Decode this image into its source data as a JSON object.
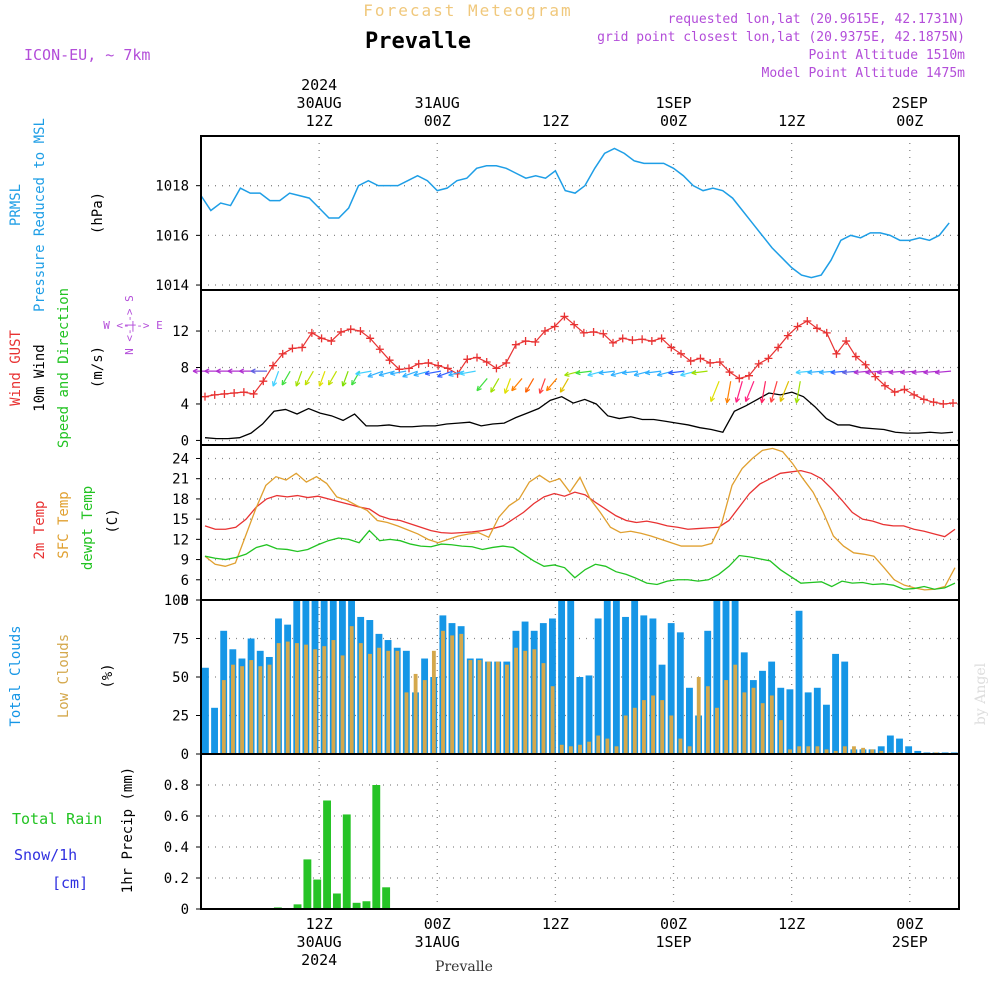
{
  "header": {
    "title": "Forecast Meteogram",
    "location": "Prevalle",
    "model": "ICON-EU, ~ 7km",
    "requested": "requested lon,lat (20.9615E, 42.1731N)",
    "grid": "grid point closest lon,lat (20.9375E, 42.1875N)",
    "altitude": "Point Altitude 1510m",
    "model_altitude": "Model Point Altitude 1475m",
    "footer_location": "Prevalle",
    "watermark": "by Angel"
  },
  "time_axis": {
    "top_labels": [
      {
        "lines": [
          "2024",
          "30AUG",
          "12Z"
        ],
        "x_hour": 12
      },
      {
        "lines": [
          "31AUG",
          "00Z"
        ],
        "x_hour": 24
      },
      {
        "lines": [
          "12Z"
        ],
        "x_hour": 36
      },
      {
        "lines": [
          "1SEP",
          "00Z"
        ],
        "x_hour": 48
      },
      {
        "lines": [
          "12Z"
        ],
        "x_hour": 60
      },
      {
        "lines": [
          "2SEP",
          "00Z"
        ],
        "x_hour": 72
      }
    ],
    "bottom_labels": [
      {
        "lines": [
          "12Z",
          "30AUG",
          "2024"
        ],
        "x_hour": 12
      },
      {
        "lines": [
          "00Z",
          "31AUG"
        ],
        "x_hour": 24
      },
      {
        "lines": [
          "12Z"
        ],
        "x_hour": 36
      },
      {
        "lines": [
          "00Z",
          "1SEP"
        ],
        "x_hour": 48
      },
      {
        "lines": [
          "12Z"
        ],
        "x_hour": 60
      },
      {
        "lines": [
          "00Z",
          "2SEP"
        ],
        "x_hour": 72
      }
    ],
    "hour_range": [
      0,
      77
    ]
  },
  "panel_labels": {
    "pressure": [
      "PRMSL",
      "Pressure Reduced to MSL"
    ],
    "pressure_unit": "(hPa)",
    "wind": [
      "Wind GUST",
      "10m Wind",
      "Speed and Direction"
    ],
    "wind_unit": "(m/s)",
    "compass": [
      "N",
      "S",
      "E",
      "W"
    ],
    "temp": [
      "2m Temp",
      "SFC Temp",
      "dewpt Temp"
    ],
    "temp_unit": "(C)",
    "clouds": [
      "Total Clouds",
      "Low Clouds"
    ],
    "clouds_unit": "(%)",
    "precip": [
      "Total  Rain",
      "Snow/1h",
      "[cm]"
    ],
    "precip_unit": "1hr Precip (mm)"
  },
  "colors": {
    "pressure": "#1e9ee6",
    "gust": "#e83232",
    "wind": "#000000",
    "t2m": "#e83232",
    "sfc": "#e0a030",
    "dewpt": "#22c322",
    "total_cloud": "#1596e6",
    "low_cloud": "#d4a84c",
    "rain": "#26c326",
    "snow": "#3030e0",
    "header": "#b34dd9",
    "title_top": "#f0c87c"
  },
  "chart_data": [
    {
      "type": "line",
      "name": "PRMSL",
      "ylabel": "(hPa)",
      "ylim": [
        1013.8,
        1020.0
      ],
      "yticks": [
        1014,
        1016,
        1018
      ],
      "x_hours": [
        0,
        1,
        2,
        3,
        4,
        5,
        6,
        7,
        8,
        9,
        10,
        11,
        12,
        13,
        14,
        15,
        16,
        17,
        18,
        19,
        20,
        21,
        22,
        23,
        24,
        25,
        26,
        27,
        28,
        29,
        30,
        31,
        32,
        33,
        34,
        35,
        36,
        37,
        38,
        39,
        40,
        41,
        42,
        43,
        44,
        45,
        46,
        47,
        48,
        49,
        50,
        51,
        52,
        53,
        54,
        55,
        56,
        57,
        58,
        59,
        60,
        61,
        62,
        63,
        64,
        65,
        66,
        67,
        68,
        69,
        70,
        71,
        72,
        73,
        74,
        75,
        76
      ],
      "values": [
        1017.6,
        1017.0,
        1017.3,
        1017.2,
        1017.9,
        1017.7,
        1017.7,
        1017.4,
        1017.4,
        1017.7,
        1017.6,
        1017.5,
        1017.1,
        1016.7,
        1016.7,
        1017.1,
        1018.0,
        1018.2,
        1018.0,
        1018.0,
        1018.0,
        1018.2,
        1018.4,
        1018.2,
        1017.8,
        1017.9,
        1018.2,
        1018.3,
        1018.7,
        1018.8,
        1018.8,
        1018.7,
        1018.5,
        1018.3,
        1018.4,
        1018.3,
        1018.6,
        1017.8,
        1017.7,
        1018.0,
        1018.7,
        1019.3,
        1019.5,
        1019.3,
        1019.0,
        1018.9,
        1018.9,
        1018.9,
        1018.7,
        1018.4,
        1018.0,
        1017.8,
        1017.9,
        1017.8,
        1017.5,
        1017.0,
        1016.5,
        1016.0,
        1015.5,
        1015.1,
        1014.7,
        1014.4,
        1014.3,
        1014.4,
        1015.0,
        1015.8,
        1016.0,
        1015.9,
        1016.1,
        1016.1,
        1016.0,
        1015.8,
        1015.8,
        1015.9,
        1015.8,
        1016.0,
        1016.5
      ]
    },
    {
      "type": "line",
      "name": "Wind",
      "ylabel": "(m/s)",
      "ylim": [
        -0.5,
        16.5
      ],
      "yticks": [
        0,
        4,
        8,
        12
      ],
      "series": [
        {
          "name": "Wind GUST",
          "values": [
            4.8,
            5.0,
            5.1,
            5.2,
            5.3,
            5.1,
            6.5,
            8.2,
            9.5,
            10.1,
            10.2,
            11.8,
            11.2,
            10.9,
            11.9,
            12.2,
            12.0,
            11.2,
            10.0,
            8.8,
            7.8,
            7.9,
            8.4,
            8.5,
            8.2,
            7.9,
            7.3,
            8.9,
            9.1,
            8.6,
            7.9,
            8.5,
            10.5,
            10.9,
            10.8,
            12.0,
            12.5,
            13.6,
            12.7,
            11.8,
            11.9,
            11.7,
            10.7,
            11.2,
            11.0,
            11.1,
            10.9,
            11.2,
            10.2,
            9.5,
            8.7,
            9.0,
            8.5,
            8.6,
            7.5,
            6.8,
            7.1,
            8.4,
            9.0,
            10.2,
            11.5,
            12.5,
            13.1,
            12.3,
            11.8,
            9.5,
            10.9,
            9.2,
            8.3,
            7.0,
            6.0,
            5.3,
            5.6,
            5.0,
            4.5,
            4.2,
            4.0,
            4.1
          ]
        },
        {
          "name": "10m Wind",
          "values": [
            0.3,
            0.2,
            0.2,
            0.3,
            0.8,
            1.8,
            3.2,
            3.4,
            2.9,
            3.5,
            3.0,
            2.7,
            2.2,
            2.9,
            1.6,
            1.6,
            1.7,
            1.5,
            1.5,
            1.6,
            1.6,
            1.8,
            1.9,
            2.0,
            1.6,
            1.8,
            1.9,
            2.5,
            3.0,
            3.5,
            4.4,
            4.8,
            4.1,
            4.5,
            4.0,
            2.7,
            2.4,
            2.6,
            2.3,
            2.3,
            2.1,
            1.9,
            1.7,
            1.4,
            1.2,
            0.9,
            3.2,
            3.8,
            4.5,
            5.2,
            5.0,
            5.3,
            4.8,
            3.7,
            2.4,
            1.7,
            1.7,
            1.4,
            1.3,
            1.2,
            0.9,
            0.8,
            0.8,
            0.9,
            0.8,
            0.9
          ]
        }
      ],
      "x_hours_gust": "0..77 by 1",
      "x_hours_wind": "0..76 step 1.17",
      "barb_colors": [
        "#b030d0",
        "#b030d0",
        "#b030d0",
        "#b030d0",
        "#b030d0",
        "#6060e0",
        "#40d0ff",
        "#40e040",
        "#a0e000",
        "#c0e000",
        "#e0e000",
        "#c0e000",
        "#80e000",
        "#40e040",
        "#40d0ff",
        "#30b0ff",
        "#30b0ff",
        "#30b0ff",
        "#30b0ff",
        "#30b0ff",
        "#3060ff",
        "#3060ff",
        "#30b0ff",
        "#40d0ff",
        "#40e040",
        "#a0e000",
        "#e0e000",
        "#ff8000",
        "#ff6000",
        "#ff4040",
        "#ff8000",
        "#e0c000",
        "#a0e000",
        "#40e040",
        "#40d0ff",
        "#30b0ff",
        "#30b0ff",
        "#30b0ff",
        "#30b0ff",
        "#30b0ff",
        "#30b0ff",
        "#3060ff",
        "#40d0ff",
        "#a0e000",
        "#e0e000",
        "#ff8000",
        "#ff2080",
        "#ff2080",
        "#ff2060",
        "#ff4040",
        "#e0c000",
        "#a0e000",
        "#40d0ff",
        "#30b0ff",
        "#30b0ff",
        "#3060ff",
        "#6060e0",
        "#b030d0",
        "#b030d0",
        "#b030d0",
        "#b030d0",
        "#b030d0",
        "#b030d0",
        "#b030d0",
        "#b030d0"
      ]
    },
    {
      "type": "line",
      "name": "Temperature",
      "ylabel": "(C)",
      "ylim": [
        3,
        26
      ],
      "yticks": [
        3,
        6,
        9,
        12,
        15,
        18,
        21,
        24
      ],
      "series": [
        {
          "name": "2m Temp",
          "values": [
            14.0,
            13.5,
            13.5,
            13.8,
            15.0,
            16.8,
            18.0,
            18.5,
            18.3,
            18.5,
            18.2,
            18.4,
            18.0,
            17.6,
            17.2,
            16.8,
            16.5,
            15.5,
            15.0,
            14.8,
            14.3,
            13.8,
            13.3,
            13.0,
            12.9,
            13.0,
            13.1,
            13.3,
            13.6,
            14.0,
            15.0,
            16.0,
            17.3,
            18.3,
            18.8,
            18.4,
            19.0,
            18.6,
            17.5,
            16.5,
            15.5,
            14.8,
            14.5,
            14.7,
            14.4,
            14.0,
            13.8,
            13.5,
            13.6,
            13.7,
            13.8,
            14.8,
            16.8,
            18.8,
            20.2,
            21.0,
            21.8,
            22.0,
            22.2,
            21.8,
            21.0,
            19.5,
            17.8,
            16.0,
            15.0,
            14.7,
            14.2,
            14.0,
            14.0,
            13.5,
            13.2,
            12.8,
            12.4,
            13.5
          ]
        },
        {
          "name": "SFC Temp",
          "values": [
            9.5,
            8.3,
            8.0,
            8.5,
            12.5,
            16.5,
            20.0,
            21.3,
            20.8,
            21.8,
            20.5,
            21.3,
            20.3,
            18.3,
            17.8,
            17.0,
            16.3,
            14.8,
            14.5,
            14.0,
            13.4,
            12.8,
            12.0,
            11.5,
            12.0,
            12.5,
            12.8,
            13.0,
            12.3,
            15.3,
            17.0,
            18.0,
            20.5,
            21.5,
            20.5,
            21.0,
            19.0,
            21.2,
            18.0,
            16.0,
            13.8,
            13.0,
            13.2,
            12.9,
            12.5,
            12.0,
            11.5,
            11.0,
            11.0,
            11.0,
            11.4,
            14.5,
            20.0,
            22.5,
            24.0,
            25.2,
            25.5,
            25.0,
            23.2,
            21.0,
            19.0,
            16.0,
            12.5,
            11.0,
            10.0,
            9.8,
            9.5,
            7.8,
            6.0,
            5.2,
            4.8,
            4.5,
            4.6,
            5.0,
            7.8
          ]
        },
        {
          "name": "dewpt Temp",
          "values": [
            9.5,
            9.2,
            9.0,
            9.3,
            9.8,
            10.8,
            11.2,
            10.6,
            10.5,
            10.2,
            10.5,
            11.2,
            11.8,
            12.2,
            12.0,
            11.5,
            13.3,
            11.8,
            12.0,
            11.8,
            11.3,
            11.0,
            10.9,
            11.3,
            11.2,
            11.0,
            10.9,
            10.5,
            10.8,
            11.0,
            10.8,
            9.8,
            8.8,
            8.0,
            8.2,
            7.8,
            6.3,
            7.5,
            8.3,
            8.0,
            7.2,
            6.8,
            6.2,
            5.5,
            5.3,
            5.8,
            6.0,
            6.0,
            5.8,
            6.0,
            6.8,
            8.0,
            9.6,
            9.4,
            9.1,
            8.8,
            7.5,
            6.5,
            5.5,
            5.6,
            5.7,
            5.0,
            5.8,
            5.5,
            5.6,
            5.3,
            5.4,
            5.2,
            4.6,
            4.7,
            5.0,
            4.6,
            4.8,
            5.5
          ]
        }
      ]
    },
    {
      "type": "bar",
      "name": "Clouds",
      "ylabel": "(%)",
      "ylim": [
        0,
        100
      ],
      "yticks": [
        0,
        25,
        50,
        75,
        100
      ],
      "series": [
        {
          "name": "Total Clouds",
          "values": [
            56,
            30,
            80,
            68,
            62,
            75,
            67,
            63,
            88,
            84,
            100,
            100,
            100,
            100,
            100,
            100,
            100,
            89,
            87,
            78,
            74,
            69,
            67,
            40,
            62,
            50,
            90,
            85,
            83,
            62,
            62,
            60,
            60,
            60,
            80,
            86,
            80,
            85,
            88,
            100,
            100,
            50,
            51,
            88,
            100,
            100,
            89,
            100,
            90,
            88,
            58,
            85,
            79,
            43,
            25,
            80,
            100,
            100,
            100,
            66,
            48,
            54,
            60,
            43,
            42,
            93,
            40,
            43,
            32,
            65,
            60,
            3,
            3,
            3,
            5,
            12,
            10,
            5,
            2,
            1,
            1,
            1,
            1
          ]
        },
        {
          "name": "Low Clouds",
          "values": [
            0,
            0,
            48,
            58,
            57,
            61,
            57,
            58,
            72,
            73,
            72,
            71,
            68,
            70,
            74,
            64,
            83,
            72,
            65,
            69,
            67,
            67,
            40,
            52,
            48,
            67,
            80,
            77,
            78,
            61,
            61,
            60,
            60,
            58,
            69,
            67,
            68,
            59,
            44,
            6,
            5,
            6,
            8,
            12,
            10,
            5,
            25,
            30,
            35,
            38,
            35,
            25,
            10,
            5,
            50,
            44,
            30,
            48,
            58,
            40,
            43,
            33,
            38,
            22,
            3,
            5,
            5,
            5,
            3,
            2,
            5,
            5,
            4,
            3,
            2,
            1,
            1,
            0,
            0,
            0,
            1,
            0,
            0
          ]
        }
      ]
    },
    {
      "type": "bar",
      "name": "Precipitation",
      "ylabel": "1hr Precip (mm)",
      "ylim": [
        0,
        1.0
      ],
      "yticks": [
        0,
        0.2,
        0.4,
        0.6,
        0.8
      ],
      "series": [
        {
          "name": "Total Rain",
          "values": [
            0,
            0,
            0,
            0,
            0,
            0,
            0,
            0.01,
            0,
            0.03,
            0.32,
            0.19,
            0.7,
            0.1,
            0.61,
            0.04,
            0.05,
            0.8,
            0.14,
            0,
            0,
            0,
            0,
            0,
            0,
            0,
            0,
            0,
            0,
            0,
            0,
            0,
            0,
            0,
            0,
            0,
            0,
            0,
            0,
            0,
            0,
            0,
            0,
            0,
            0,
            0,
            0,
            0,
            0,
            0,
            0,
            0,
            0,
            0,
            0,
            0,
            0,
            0,
            0,
            0,
            0,
            0,
            0,
            0,
            0,
            0,
            0,
            0,
            0,
            0,
            0,
            0,
            0,
            0,
            0,
            0,
            0
          ]
        },
        {
          "name": "Snow/1h",
          "values": []
        }
      ]
    }
  ]
}
